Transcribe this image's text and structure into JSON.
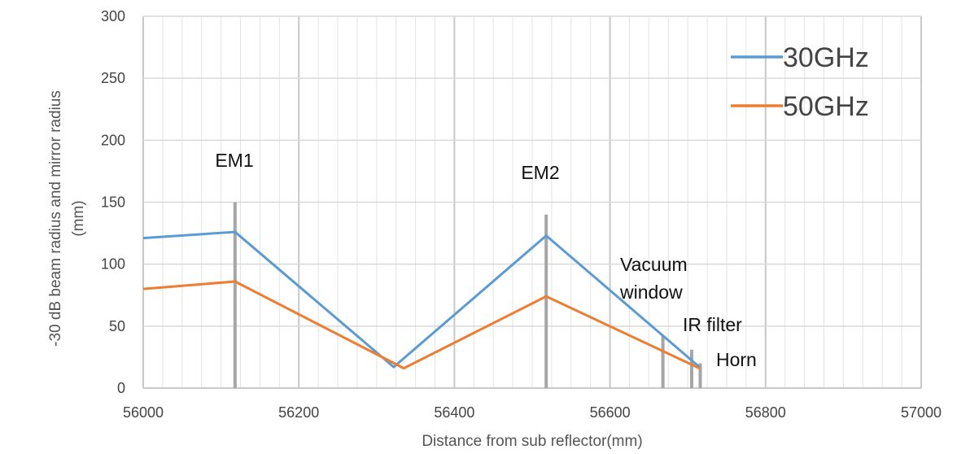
{
  "chart_data": {
    "type": "line",
    "title": "",
    "xlabel": "Distance from sub reflector(mm)",
    "ylabel": [
      "-30 dB beam radius and mirror radius",
      "(mm)"
    ],
    "xlim": [
      56000,
      57000
    ],
    "ylim": [
      0,
      300
    ],
    "xticks": [
      56000,
      56200,
      56400,
      56600,
      56800,
      57000
    ],
    "yticks": [
      0,
      50,
      100,
      150,
      200,
      250,
      300
    ],
    "grid": true,
    "legend_position": "top-right",
    "series": [
      {
        "name": "30GHz",
        "color": "#5b9bd5",
        "x": [
          56000,
          56118,
          56322,
          56518,
          56715
        ],
        "y": [
          121,
          126,
          17,
          123,
          17
        ]
      },
      {
        "name": "50GHz",
        "color": "#ed7d31",
        "x": [
          56000,
          56118,
          56335,
          56518,
          56715
        ],
        "y": [
          80,
          86,
          16,
          74,
          16
        ]
      }
    ],
    "components": [
      {
        "label": [
          "EM1"
        ],
        "x": 56118,
        "radius": 150
      },
      {
        "label": [
          "EM2"
        ],
        "x": 56518,
        "radius": 140
      },
      {
        "label": [
          "Vacuum",
          "window"
        ],
        "x": 56668,
        "radius": 42
      },
      {
        "label": [
          "IR filter"
        ],
        "x": 56705,
        "radius": 31
      },
      {
        "label": [
          "Horn"
        ],
        "x": 56716,
        "radius": 20
      }
    ]
  }
}
